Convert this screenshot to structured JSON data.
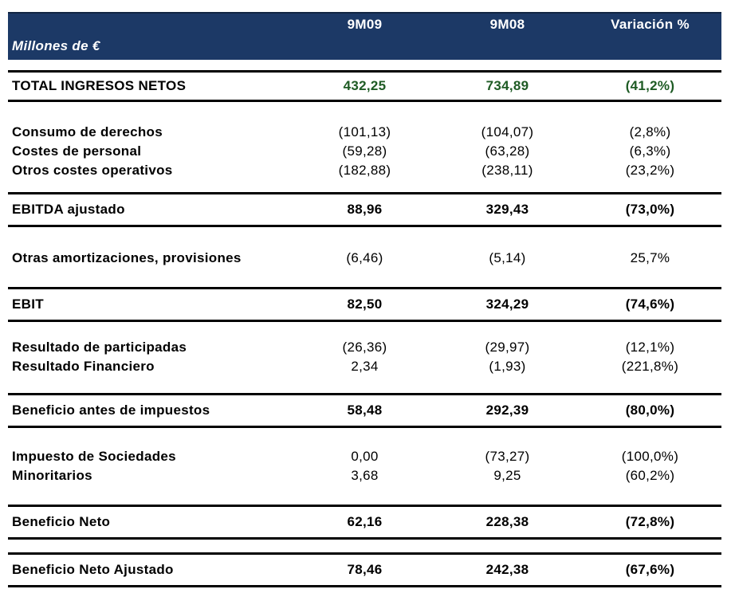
{
  "header": {
    "unit_label": "Millones de €",
    "columns": [
      "9M09",
      "9M08",
      "Variación %"
    ]
  },
  "colors": {
    "header_bg": "#1c3966",
    "header_text": "#ffffff",
    "total_values_green": "#1e5b24",
    "rule": "#000000"
  },
  "table": {
    "rows": [
      {
        "key": "total-ingresos-netos",
        "type": "summary",
        "label": "TOTAL INGRESOS NETOS",
        "values": [
          "432,25",
          "734,89",
          "(41,2%)"
        ]
      },
      {
        "key": "consumo-de-derechos",
        "type": "detail",
        "label": "Consumo de derechos",
        "values": [
          "(101,13)",
          "(104,07)",
          "(2,8%)"
        ]
      },
      {
        "key": "costes-de-personal",
        "type": "detail",
        "label": "Costes de personal",
        "values": [
          "(59,28)",
          "(63,28)",
          "(6,3%)"
        ]
      },
      {
        "key": "otros-costes-operativos",
        "type": "detail",
        "label": "Otros costes operativos",
        "values": [
          "(182,88)",
          "(238,11)",
          "(23,2%)"
        ]
      },
      {
        "key": "ebitda-ajustado",
        "type": "summary",
        "label": "EBITDA ajustado",
        "values": [
          "88,96",
          "329,43",
          "(73,0%)"
        ]
      },
      {
        "key": "otras-amortizaciones-provisiones",
        "type": "detail",
        "label": "Otras amortizaciones, provisiones",
        "values": [
          "(6,46)",
          "(5,14)",
          "25,7%"
        ]
      },
      {
        "key": "ebit",
        "type": "summary",
        "label": "EBIT",
        "values": [
          "82,50",
          "324,29",
          "(74,6%)"
        ]
      },
      {
        "key": "resultado-de-participadas",
        "type": "detail",
        "label": "Resultado de participadas",
        "values": [
          "(26,36)",
          "(29,97)",
          "(12,1%)"
        ]
      },
      {
        "key": "resultado-financiero",
        "type": "detail",
        "label": "Resultado Financiero",
        "values": [
          "2,34",
          "(1,93)",
          "(221,8%)"
        ]
      },
      {
        "key": "beneficio-antes-de-impuestos",
        "type": "summary",
        "label": "Beneficio antes de impuestos",
        "values": [
          "58,48",
          "292,39",
          "(80,0%)"
        ]
      },
      {
        "key": "impuesto-de-sociedades",
        "type": "detail",
        "label": "Impuesto de Sociedades",
        "values": [
          "0,00",
          "(73,27)",
          "(100,0%)"
        ]
      },
      {
        "key": "minoritarios",
        "type": "detail",
        "label": "Minoritarios",
        "values": [
          "3,68",
          "9,25",
          "(60,2%)"
        ]
      },
      {
        "key": "beneficio-neto",
        "type": "summary",
        "label": "Beneficio Neto",
        "values": [
          "62,16",
          "228,38",
          "(72,8%)"
        ]
      },
      {
        "key": "beneficio-neto-ajustado",
        "type": "summary",
        "label": "Beneficio Neto Ajustado",
        "values": [
          "78,46",
          "242,38",
          "(67,6%)"
        ]
      }
    ]
  }
}
